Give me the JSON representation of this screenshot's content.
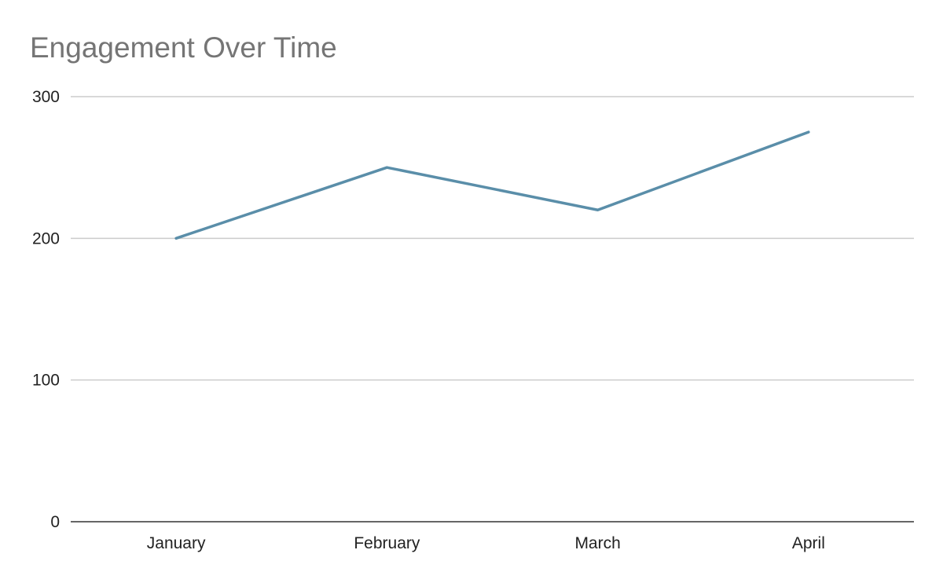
{
  "chart_data": {
    "type": "line",
    "title": "Engagement Over Time",
    "xlabel": "",
    "ylabel": "",
    "categories": [
      "January",
      "February",
      "March",
      "April"
    ],
    "series": [
      {
        "values": [
          200,
          250,
          220,
          275
        ],
        "color": "#5a8ea9"
      }
    ],
    "ylim": [
      0,
      300
    ],
    "yticks": [
      0,
      100,
      200,
      300
    ],
    "grid": true,
    "legend": "none"
  }
}
